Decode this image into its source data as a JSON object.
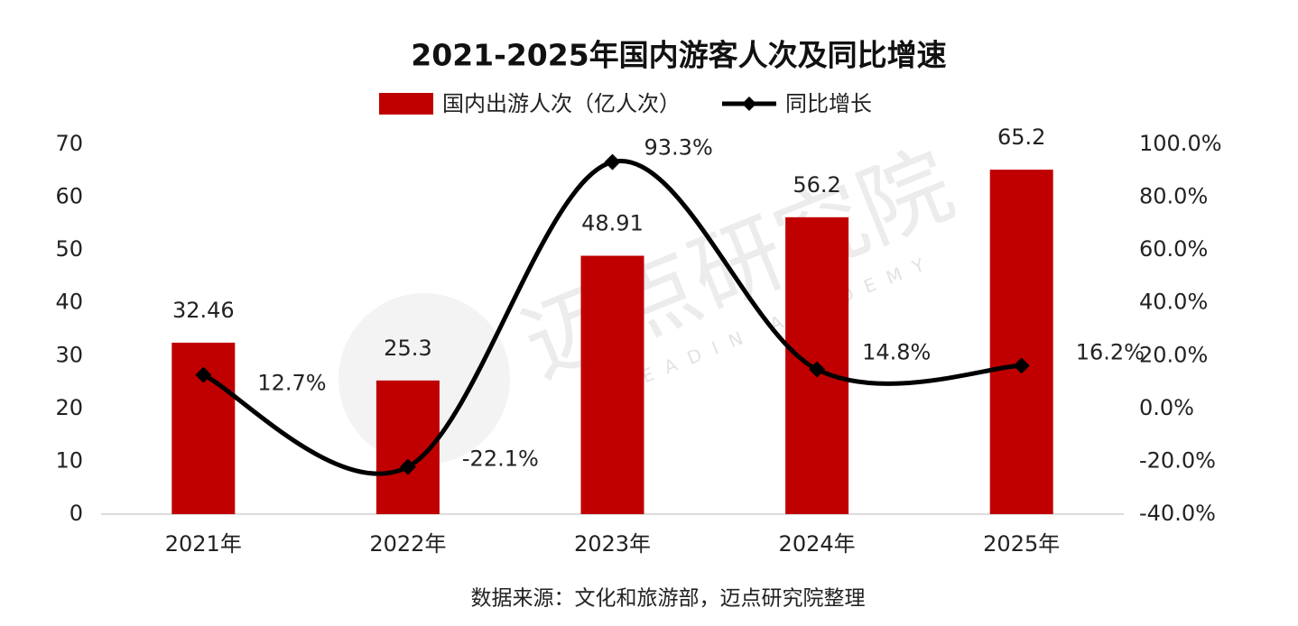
{
  "chart_data": {
    "type": "bar",
    "title": "2021-2025年国内游客人次及同比增速",
    "categories": [
      "2021年",
      "2022年",
      "2023年",
      "2024年",
      "2025年"
    ],
    "series": [
      {
        "name": "国内出游人次（亿人次）",
        "type": "bar",
        "color": "#c00000",
        "values": [
          32.46,
          25.3,
          48.91,
          56.2,
          65.2
        ]
      },
      {
        "name": "同比增长",
        "type": "line",
        "axis": "y2",
        "color": "#000000",
        "values": [
          12.7,
          -22.1,
          93.3,
          14.8,
          16.2
        ],
        "value_labels": [
          "12.7%",
          "-22.1%",
          "93.3%",
          "14.8%",
          "16.2%"
        ]
      }
    ],
    "ylim": [
      0,
      70
    ],
    "yticks": [
      0,
      10,
      20,
      30,
      40,
      50,
      60,
      70
    ],
    "y2lim": [
      -40,
      100
    ],
    "y2ticks": [
      {
        "value": -40,
        "label": "-40.0%"
      },
      {
        "value": -20,
        "label": "-20.0%"
      },
      {
        "value": 0,
        "label": "0.0%"
      },
      {
        "value": 20,
        "label": "20.0%"
      },
      {
        "value": 40,
        "label": "40.0%"
      },
      {
        "value": 60,
        "label": "60.0%"
      },
      {
        "value": 80,
        "label": "80.0%"
      },
      {
        "value": 100,
        "label": "100.0%"
      }
    ],
    "legend": "top",
    "source": "数据来源：文化和旅游部，迈点研究院整理",
    "watermark": {
      "text": "迈点研究院",
      "subtext": "MEADIN ACADEMY"
    }
  }
}
